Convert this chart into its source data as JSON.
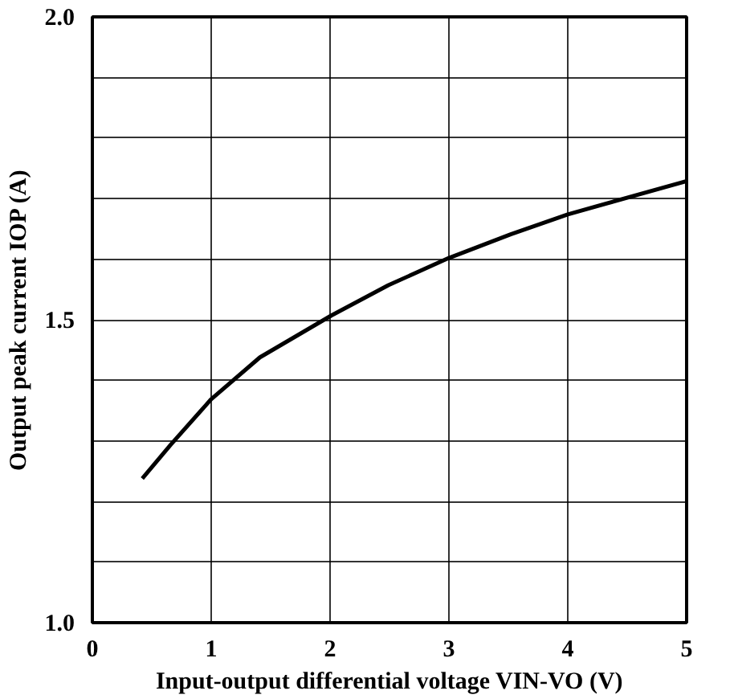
{
  "chart_data": {
    "type": "line",
    "xlabel": "Input-output differential voltage VIN-VO (V)",
    "ylabel": "Output peak current IOP (A)",
    "xlim": [
      0,
      5
    ],
    "ylim": [
      1.0,
      2.0
    ],
    "xticks": [
      0,
      1,
      2,
      3,
      4,
      5
    ],
    "yticks": [
      {
        "value": 1.0,
        "label": "1.0"
      },
      {
        "value": 1.1,
        "label": null
      },
      {
        "value": 1.2,
        "label": null
      },
      {
        "value": 1.3,
        "label": null
      },
      {
        "value": 1.4,
        "label": null
      },
      {
        "value": 1.5,
        "label": "1.5"
      },
      {
        "value": 1.6,
        "label": null
      },
      {
        "value": 1.7,
        "label": null
      },
      {
        "value": 1.8,
        "label": null
      },
      {
        "value": 1.9,
        "label": null
      },
      {
        "value": 2.0,
        "label": "2.0"
      }
    ],
    "grid": true,
    "line_style": "solid",
    "series": [
      {
        "color": "#000000",
        "x": [
          0.42,
          0.66,
          1.0,
          1.41,
          2.01,
          2.49,
          3.0,
          3.52,
          4.0,
          5.0
        ],
        "values": [
          1.238,
          1.294,
          1.369,
          1.438,
          1.507,
          1.557,
          1.602,
          1.641,
          1.674,
          1.729
        ]
      }
    ]
  }
}
